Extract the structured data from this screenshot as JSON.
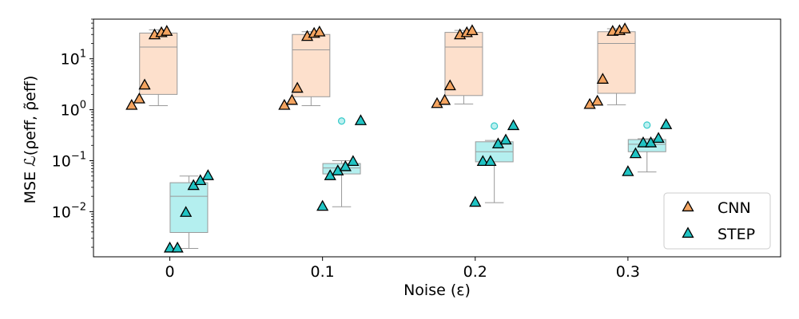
{
  "chart_data": {
    "type": "box-scatter",
    "xlabel": "Noise (ε)",
    "ylabel": "MSE ℒ(ρeff, ρ̃eff)",
    "yscale": "log",
    "ylim": [
      0.0013,
      60
    ],
    "categories": [
      "0",
      "0.1",
      "0.2",
      "0.3"
    ],
    "x_values": [
      0,
      0.1,
      0.2,
      0.3
    ],
    "y_ticks": [
      {
        "value": 0.01,
        "base": "10",
        "exp": "−2"
      },
      {
        "value": 0.1,
        "base": "10",
        "exp": "−1"
      },
      {
        "value": 1,
        "base": "10",
        "exp": "0"
      },
      {
        "value": 10,
        "base": "10",
        "exp": "1"
      }
    ],
    "legend_position": "lower-right",
    "grid": false,
    "series": [
      {
        "name": "CNN",
        "color": "#f4a460",
        "box_fill": "#fde0cc",
        "marker": "triangle",
        "box_offset": -0.0075,
        "boxes": [
          {
            "x": 0,
            "q1": 2.0,
            "median": 17,
            "q3": 32,
            "whisker_low": 1.2,
            "whisker_high": 37,
            "outliers": []
          },
          {
            "x": 0.1,
            "q1": 1.8,
            "median": 15,
            "q3": 30,
            "whisker_low": 1.2,
            "whisker_high": 34,
            "outliers": []
          },
          {
            "x": 0.2,
            "q1": 1.9,
            "median": 17,
            "q3": 33,
            "whisker_low": 1.3,
            "whisker_high": 36,
            "outliers": []
          },
          {
            "x": 0.3,
            "q1": 2.1,
            "median": 20,
            "q3": 34,
            "whisker_low": 1.25,
            "whisker_high": 39,
            "outliers": []
          }
        ],
        "points": [
          {
            "x": -0.025,
            "y": 1.2
          },
          {
            "x": -0.02,
            "y": 1.6
          },
          {
            "x": -0.0165,
            "y": 3.0
          },
          {
            "x": -0.01,
            "y": 29
          },
          {
            "x": -0.0055,
            "y": 32
          },
          {
            "x": -0.002,
            "y": 34
          },
          {
            "x": 0.075,
            "y": 1.2
          },
          {
            "x": 0.08,
            "y": 1.5
          },
          {
            "x": 0.0835,
            "y": 2.6
          },
          {
            "x": 0.09,
            "y": 27
          },
          {
            "x": 0.0945,
            "y": 31
          },
          {
            "x": 0.098,
            "y": 33
          },
          {
            "x": 0.175,
            "y": 1.3
          },
          {
            "x": 0.18,
            "y": 1.5
          },
          {
            "x": 0.1835,
            "y": 2.9
          },
          {
            "x": 0.19,
            "y": 29
          },
          {
            "x": 0.1945,
            "y": 32
          },
          {
            "x": 0.198,
            "y": 35
          },
          {
            "x": 0.275,
            "y": 1.25
          },
          {
            "x": 0.28,
            "y": 1.45
          },
          {
            "x": 0.2835,
            "y": 3.9
          },
          {
            "x": 0.29,
            "y": 34
          },
          {
            "x": 0.2945,
            "y": 35
          },
          {
            "x": 0.298,
            "y": 38
          }
        ]
      },
      {
        "name": "STEP",
        "color": "#20c4c4",
        "box_fill": "#b4efef",
        "marker": "triangle",
        "box_offset": 0.0125,
        "boxes": [
          {
            "x": 0,
            "q1": 0.0039,
            "median": 0.02,
            "q3": 0.037,
            "whisker_low": 0.0019,
            "whisker_high": 0.05,
            "outliers": []
          },
          {
            "x": 0.1,
            "q1": 0.055,
            "median": 0.072,
            "q3": 0.088,
            "whisker_low": 0.0125,
            "whisker_high": 0.1,
            "outliers": [
              0.6
            ]
          },
          {
            "x": 0.2,
            "q1": 0.095,
            "median": 0.15,
            "q3": 0.235,
            "whisker_low": 0.015,
            "whisker_high": 0.25,
            "outliers": [
              0.48
            ]
          },
          {
            "x": 0.3,
            "q1": 0.15,
            "median": 0.21,
            "q3": 0.26,
            "whisker_low": 0.06,
            "whisker_high": 0.27,
            "outliers": [
              0.5
            ]
          }
        ],
        "points": [
          {
            "x": 0.0,
            "y": 0.0019
          },
          {
            "x": 0.005,
            "y": 0.0019
          },
          {
            "x": 0.0105,
            "y": 0.0095
          },
          {
            "x": 0.0155,
            "y": 0.032
          },
          {
            "x": 0.02,
            "y": 0.04
          },
          {
            "x": 0.025,
            "y": 0.05
          },
          {
            "x": 0.1,
            "y": 0.0125
          },
          {
            "x": 0.105,
            "y": 0.05
          },
          {
            "x": 0.11,
            "y": 0.062
          },
          {
            "x": 0.115,
            "y": 0.075
          },
          {
            "x": 0.12,
            "y": 0.095
          },
          {
            "x": 0.125,
            "y": 0.6
          },
          {
            "x": 0.2,
            "y": 0.015
          },
          {
            "x": 0.205,
            "y": 0.095
          },
          {
            "x": 0.21,
            "y": 0.095
          },
          {
            "x": 0.215,
            "y": 0.21
          },
          {
            "x": 0.22,
            "y": 0.25
          },
          {
            "x": 0.225,
            "y": 0.48
          },
          {
            "x": 0.3,
            "y": 0.06
          },
          {
            "x": 0.305,
            "y": 0.135
          },
          {
            "x": 0.31,
            "y": 0.22
          },
          {
            "x": 0.315,
            "y": 0.22
          },
          {
            "x": 0.32,
            "y": 0.27
          },
          {
            "x": 0.325,
            "y": 0.5
          }
        ]
      }
    ]
  }
}
